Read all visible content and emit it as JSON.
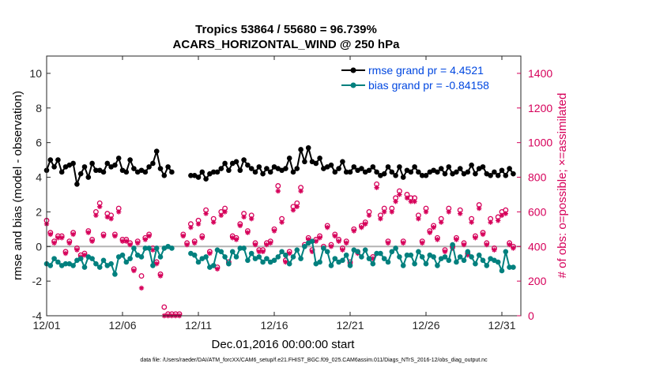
{
  "chart_data": {
    "type": "line",
    "title_line1": "Tropics 53864 / 55680 = 96.739%",
    "title_line2": "ACARS_HORIZONTAL_WIND @ 250 hPa",
    "xlabel": "Dec.01,2016 00:00:00 start",
    "ylabel_left": "rmse and bias (model - observation)",
    "ylabel_right": "# of obs: o=possible; ×=assimilated",
    "footer": "data file: /Users/raeder/DAI/ATM_forcXX/CAM6_setup/f.e21.FHIST_BGC.f09_025.CAM6assim.011/Diags_NTrS_2016-12/obs_diag_output.nc",
    "x_tick_labels": [
      "12/01",
      "12/06",
      "12/11",
      "12/16",
      "12/21",
      "12/26",
      "12/31"
    ],
    "x_tick_values": [
      1,
      6,
      11,
      16,
      21,
      26,
      31
    ],
    "xlim": [
      1,
      32.25
    ],
    "y_left_ticks": [
      -4,
      -2,
      0,
      2,
      4,
      6,
      8,
      10
    ],
    "ylim_left": [
      -4,
      11
    ],
    "y_right_ticks": [
      0,
      200,
      400,
      600,
      800,
      1000,
      1200,
      1400
    ],
    "ylim_right": [
      0,
      1500
    ],
    "colors": {
      "rmse": "#000000",
      "bias": "#00807e",
      "counts": "#d6005a",
      "legend_text": "#0047e0",
      "zero_line": "#b4b4b4"
    },
    "series": [
      {
        "name": "rmse grand pr = 4.4521",
        "key": "rmse",
        "axis": "left",
        "x": [
          1.0,
          1.25,
          1.5,
          1.75,
          2.0,
          2.25,
          2.5,
          2.75,
          3.0,
          3.25,
          3.5,
          3.75,
          4.0,
          4.25,
          4.5,
          4.75,
          5.0,
          5.25,
          5.5,
          5.75,
          6.0,
          6.25,
          6.5,
          6.75,
          7.0,
          7.25,
          7.5,
          7.75,
          8.0,
          8.25,
          8.5,
          8.75,
          9.0,
          9.25,
          9.5,
          9.75,
          10.0,
          10.25,
          10.5,
          10.75,
          11.0,
          11.25,
          11.5,
          11.75,
          12.0,
          12.25,
          12.5,
          12.75,
          13.0,
          13.25,
          13.5,
          13.75,
          14.0,
          14.25,
          14.5,
          14.75,
          15.0,
          15.25,
          15.5,
          15.75,
          16.0,
          16.25,
          16.5,
          16.75,
          17.0,
          17.25,
          17.5,
          17.75,
          18.0,
          18.25,
          18.5,
          18.75,
          19.0,
          19.25,
          19.5,
          19.75,
          20.0,
          20.25,
          20.5,
          20.75,
          21.0,
          21.25,
          21.5,
          21.75,
          22.0,
          22.25,
          22.5,
          22.75,
          23.0,
          23.25,
          23.5,
          23.75,
          24.0,
          24.25,
          24.5,
          24.75,
          25.0,
          25.25,
          25.5,
          25.75,
          26.0,
          26.25,
          26.5,
          26.75,
          27.0,
          27.25,
          27.5,
          27.75,
          28.0,
          28.25,
          28.5,
          28.75,
          29.0,
          29.25,
          29.5,
          29.75,
          30.0,
          30.25,
          30.5,
          30.75,
          31.0,
          31.25,
          31.5,
          31.75
        ],
        "values": [
          4.4,
          5.0,
          4.6,
          5.0,
          4.3,
          4.6,
          4.7,
          4.8,
          3.6,
          4.2,
          4.6,
          4.0,
          4.8,
          4.4,
          4.4,
          4.3,
          4.8,
          4.6,
          4.7,
          5.1,
          4.4,
          4.3,
          5.0,
          4.5,
          4.3,
          4.4,
          4.3,
          4.6,
          4.8,
          5.5,
          4.5,
          4.1,
          4.6,
          4.3,
          null,
          null,
          null,
          null,
          4.1,
          4.1,
          4.0,
          4.3,
          3.9,
          4.2,
          4.3,
          4.3,
          4.5,
          4.8,
          4.4,
          4.8,
          4.9,
          4.4,
          5.0,
          4.7,
          4.5,
          4.3,
          4.6,
          4.2,
          4.5,
          4.3,
          4.6,
          4.5,
          4.4,
          4.5,
          5.1,
          4.3,
          4.5,
          5.6,
          4.9,
          5.7,
          4.9,
          4.8,
          5.1,
          4.5,
          4.6,
          4.7,
          4.3,
          4.5,
          4.9,
          4.3,
          4.3,
          4.6,
          4.4,
          4.5,
          4.3,
          4.4,
          4.6,
          4.3,
          4.1,
          4.2,
          4.6,
          4.3,
          4.1,
          4.6,
          4.0,
          4.4,
          4.3,
          4.6,
          4.3,
          4.1,
          4.1,
          4.3,
          4.4,
          4.3,
          4.5,
          4.2,
          4.6,
          4.2,
          4.3,
          4.5,
          4.2,
          4.3,
          4.7,
          4.2,
          4.5,
          4.6,
          4.2,
          4.1,
          4.3,
          4.1,
          4.4,
          4.1,
          4.5,
          4.2
        ]
      },
      {
        "name": "bias grand pr = -0.84158",
        "key": "bias",
        "axis": "left",
        "x": [
          1.0,
          1.25,
          1.5,
          1.75,
          2.0,
          2.25,
          2.5,
          2.75,
          3.0,
          3.25,
          3.5,
          3.75,
          4.0,
          4.25,
          4.5,
          4.75,
          5.0,
          5.25,
          5.5,
          5.75,
          6.0,
          6.25,
          6.5,
          6.75,
          7.0,
          7.25,
          7.5,
          7.75,
          8.0,
          8.25,
          8.5,
          8.75,
          9.0,
          9.25,
          9.5,
          9.75,
          10.0,
          10.25,
          10.5,
          10.75,
          11.0,
          11.25,
          11.5,
          11.75,
          12.0,
          12.25,
          12.5,
          12.75,
          13.0,
          13.25,
          13.5,
          13.75,
          14.0,
          14.25,
          14.5,
          14.75,
          15.0,
          15.25,
          15.5,
          15.75,
          16.0,
          16.25,
          16.5,
          16.75,
          17.0,
          17.25,
          17.5,
          17.75,
          18.0,
          18.25,
          18.5,
          18.75,
          19.0,
          19.25,
          19.5,
          19.75,
          20.0,
          20.25,
          20.5,
          20.75,
          21.0,
          21.25,
          21.5,
          21.75,
          22.0,
          22.25,
          22.5,
          22.75,
          23.0,
          23.25,
          23.5,
          23.75,
          24.0,
          24.25,
          24.5,
          24.75,
          25.0,
          25.25,
          25.5,
          25.75,
          26.0,
          26.25,
          26.5,
          26.75,
          27.0,
          27.25,
          27.5,
          27.75,
          28.0,
          28.25,
          28.5,
          28.75,
          29.0,
          29.25,
          29.5,
          29.75,
          30.0,
          30.25,
          30.5,
          30.75,
          31.0,
          31.25,
          31.5,
          31.75
        ],
        "values": [
          -1.0,
          -1.1,
          -0.7,
          -0.9,
          -1.1,
          -1.0,
          -1.0,
          -1.1,
          -0.8,
          -0.7,
          -1.2,
          -0.6,
          -0.7,
          -1.0,
          -1.2,
          -0.8,
          -1.1,
          -1.0,
          -1.6,
          -0.6,
          -0.5,
          -0.9,
          -0.7,
          -0.1,
          -0.5,
          -0.6,
          -0.1,
          -0.1,
          -1.1,
          -0.1,
          -0.6,
          -0.1,
          0.0,
          -0.1,
          null,
          null,
          null,
          null,
          -0.4,
          -0.5,
          -0.9,
          -0.7,
          -0.6,
          -1.2,
          -1.1,
          -0.2,
          -0.3,
          -0.6,
          -1.0,
          -0.3,
          -0.6,
          -0.1,
          -0.1,
          -0.8,
          -0.4,
          -0.7,
          -0.6,
          -0.9,
          -0.7,
          -0.9,
          -0.8,
          -0.6,
          -0.3,
          -0.5,
          -1.0,
          -0.6,
          -0.2,
          -0.7,
          0.0,
          0.2,
          0.3,
          -1.0,
          -0.9,
          -0.1,
          -0.3,
          -1.1,
          -0.7,
          -0.9,
          -0.8,
          -0.5,
          -1.1,
          -0.2,
          -0.3,
          -0.6,
          -0.2,
          -0.7,
          -1.0,
          -0.4,
          -0.4,
          -0.7,
          -0.9,
          -0.3,
          -0.1,
          -0.6,
          -1.1,
          -0.5,
          -0.5,
          -1.0,
          -0.3,
          -0.6,
          -1.0,
          -0.5,
          -0.6,
          -1.1,
          -0.7,
          -0.6,
          -0.8,
          0.1,
          -0.9,
          -0.6,
          -0.8,
          -0.3,
          -0.6,
          -1.0,
          -0.5,
          -0.8,
          -1.1,
          -0.7,
          -0.8,
          -0.9,
          -1.4,
          -0.3,
          -1.2,
          -1.2
        ]
      },
      {
        "name": "obs possible",
        "key": "possible",
        "axis": "right",
        "marker": "circle",
        "x": [
          1.0,
          1.25,
          1.5,
          1.75,
          2.0,
          2.25,
          2.5,
          2.75,
          3.0,
          3.25,
          3.5,
          3.75,
          4.0,
          4.25,
          4.5,
          4.75,
          5.0,
          5.25,
          5.5,
          5.75,
          6.0,
          6.25,
          6.5,
          6.75,
          7.0,
          7.25,
          7.5,
          7.75,
          8.0,
          8.25,
          8.5,
          8.75,
          9.0,
          9.25,
          9.5,
          9.75,
          10.0,
          10.25,
          10.5,
          10.75,
          11.0,
          11.25,
          11.5,
          11.75,
          12.0,
          12.25,
          12.5,
          12.75,
          13.0,
          13.25,
          13.5,
          13.75,
          14.0,
          14.25,
          14.5,
          14.75,
          15.0,
          15.25,
          15.5,
          15.75,
          16.0,
          16.25,
          16.5,
          16.75,
          17.0,
          17.25,
          17.5,
          17.75,
          18.0,
          18.25,
          18.5,
          18.75,
          19.0,
          19.25,
          19.5,
          19.75,
          20.0,
          20.25,
          20.5,
          20.75,
          21.0,
          21.25,
          21.5,
          21.75,
          22.0,
          22.25,
          22.5,
          22.75,
          23.0,
          23.25,
          23.5,
          23.75,
          24.0,
          24.25,
          24.5,
          24.75,
          25.0,
          25.25,
          25.5,
          25.75,
          26.0,
          26.25,
          26.5,
          26.75,
          27.0,
          27.25,
          27.5,
          27.75,
          28.0,
          28.25,
          28.5,
          28.75,
          29.0,
          29.25,
          29.5,
          29.75,
          30.0,
          30.25,
          30.5,
          30.75,
          31.0,
          31.25,
          31.5,
          31.75
        ],
        "values": [
          550,
          480,
          430,
          460,
          460,
          370,
          430,
          480,
          390,
          350,
          360,
          490,
          440,
          600,
          650,
          470,
          590,
          580,
          470,
          620,
          440,
          440,
          420,
          270,
          430,
          230,
          450,
          470,
          390,
          310,
          240,
          50,
          10,
          10,
          10,
          10,
          470,
          420,
          530,
          430,
          550,
          460,
          610,
          370,
          560,
          280,
          600,
          620,
          310,
          460,
          450,
          530,
          590,
          490,
          580,
          420,
          380,
          380,
          420,
          430,
          500,
          750,
          560,
          320,
          370,
          630,
          650,
          740,
          410,
          450,
          380,
          440,
          460,
          400,
          520,
          410,
          470,
          440,
          390,
          430,
          310,
          500,
          370,
          520,
          540,
          600,
          340,
          760,
          580,
          620,
          430,
          620,
          680,
          720,
          430,
          700,
          680,
          680,
          580,
          430,
          620,
          490,
          520,
          450,
          560,
          380,
          620,
          400,
          450,
          610,
          420,
          360,
          560,
          460,
          640,
          480,
          420,
          560,
          390,
          570,
          600,
          610,
          420,
          400
        ]
      },
      {
        "name": "obs assimilated",
        "key": "assimilated",
        "axis": "right",
        "marker": "asterisk",
        "x": [
          1.0,
          1.25,
          1.5,
          1.75,
          2.0,
          2.25,
          2.5,
          2.75,
          3.0,
          3.25,
          3.5,
          3.75,
          4.0,
          4.25,
          4.5,
          4.75,
          5.0,
          5.25,
          5.5,
          5.75,
          6.0,
          6.25,
          6.5,
          6.75,
          7.0,
          7.25,
          7.5,
          7.75,
          8.0,
          8.25,
          8.5,
          8.75,
          9.0,
          9.25,
          9.5,
          9.75,
          10.0,
          10.25,
          10.5,
          10.75,
          11.0,
          11.25,
          11.5,
          11.75,
          12.0,
          12.25,
          12.5,
          12.75,
          13.0,
          13.25,
          13.5,
          13.75,
          14.0,
          14.25,
          14.5,
          14.75,
          15.0,
          15.25,
          15.5,
          15.75,
          16.0,
          16.25,
          16.5,
          16.75,
          17.0,
          17.25,
          17.5,
          17.75,
          18.0,
          18.25,
          18.5,
          18.75,
          19.0,
          19.25,
          19.5,
          19.75,
          20.0,
          20.25,
          20.5,
          20.75,
          21.0,
          21.25,
          21.5,
          21.75,
          22.0,
          22.25,
          22.5,
          22.75,
          23.0,
          23.25,
          23.5,
          23.75,
          24.0,
          24.25,
          24.5,
          24.75,
          25.0,
          25.25,
          25.5,
          25.75,
          26.0,
          26.25,
          26.5,
          26.75,
          27.0,
          27.25,
          27.5,
          27.75,
          28.0,
          28.25,
          28.5,
          28.75,
          29.0,
          29.25,
          29.5,
          29.75,
          30.0,
          30.25,
          30.5,
          30.75,
          31.0,
          31.25,
          31.5,
          31.75
        ],
        "values": [
          530,
          470,
          420,
          450,
          450,
          360,
          420,
          470,
          380,
          340,
          350,
          480,
          430,
          580,
          630,
          460,
          570,
          560,
          460,
          600,
          430,
          430,
          410,
          260,
          420,
          160,
          440,
          460,
          380,
          300,
          230,
          0,
          0,
          0,
          0,
          0,
          460,
          410,
          510,
          420,
          530,
          450,
          590,
          360,
          540,
          270,
          580,
          600,
          300,
          450,
          440,
          520,
          570,
          480,
          560,
          410,
          370,
          370,
          410,
          420,
          490,
          720,
          540,
          310,
          360,
          610,
          630,
          720,
          400,
          440,
          370,
          430,
          450,
          390,
          510,
          400,
          460,
          430,
          380,
          420,
          300,
          490,
          360,
          510,
          530,
          580,
          330,
          740,
          560,
          600,
          420,
          600,
          660,
          700,
          420,
          680,
          660,
          660,
          560,
          420,
          600,
          480,
          510,
          440,
          540,
          370,
          600,
          390,
          440,
          590,
          410,
          350,
          540,
          450,
          620,
          470,
          410,
          540,
          380,
          550,
          580,
          590,
          410,
          390
        ]
      }
    ]
  }
}
